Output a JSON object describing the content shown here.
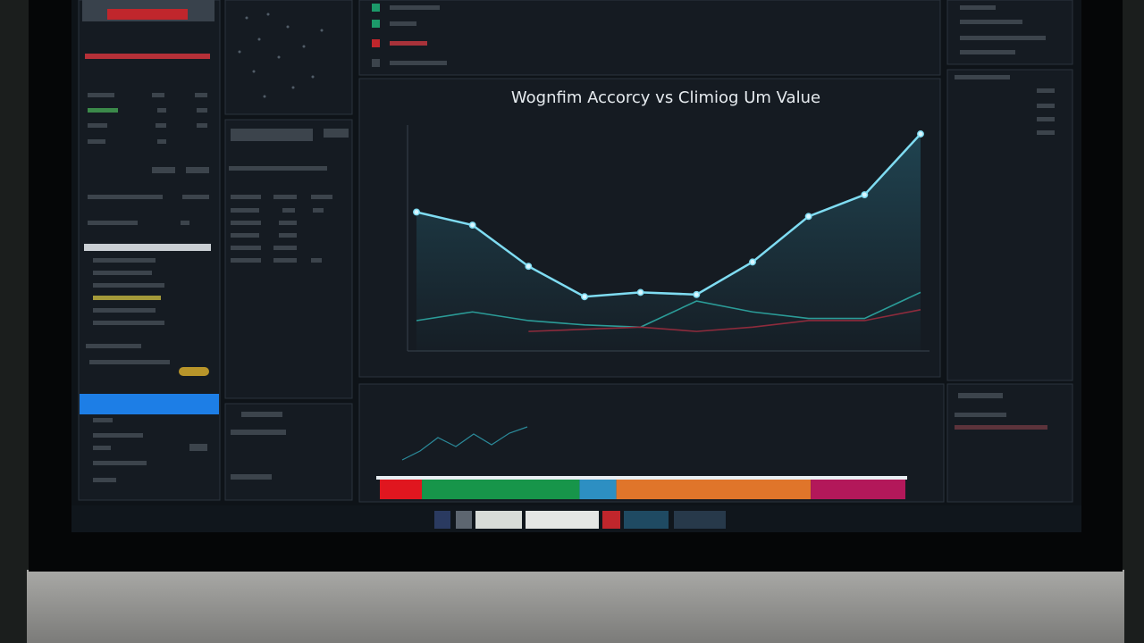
{
  "title": "Wognfim Accorcy vs Climiog Um Value",
  "chart_data": [
    {
      "type": "line",
      "ylim": [
        0,
        10
      ],
      "series": [
        {
          "color": "#7fdcf2",
          "values": [
            6.4,
            5.8,
            3.9,
            2.5,
            2.7,
            2.6,
            4.1,
            6.2,
            7.2,
            10.0
          ]
        },
        {
          "color": "#2b9c98",
          "values": [
            1.4,
            1.8,
            1.4,
            1.2,
            1.1,
            2.3,
            1.8,
            1.5,
            1.5,
            2.7
          ]
        },
        {
          "color": "#8e2b3c",
          "values": [
            null,
            null,
            0.9,
            1.0,
            1.1,
            0.9,
            1.1,
            1.4,
            1.4,
            1.9
          ]
        }
      ]
    },
    {
      "type": "stacked-bar",
      "xlim": [
        0,
        100
      ],
      "series": [
        {
          "color": "#e0161f",
          "values": [
            8
          ]
        },
        {
          "color": "#17954a",
          "values": [
            30
          ]
        },
        {
          "color": "#2d8fc2",
          "values": [
            7
          ]
        },
        {
          "color": "#e0752a",
          "values": [
            37
          ]
        },
        {
          "color": "#b3185a",
          "values": [
            18
          ]
        }
      ]
    }
  ]
}
